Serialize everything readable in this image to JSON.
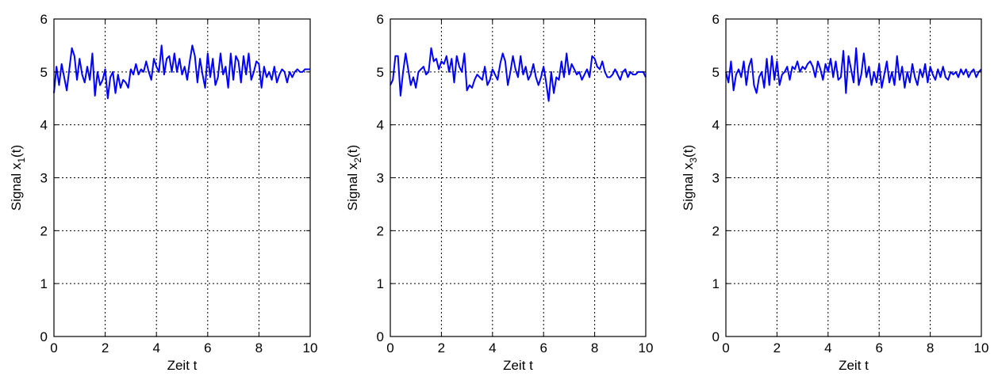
{
  "chart_data": [
    {
      "type": "line",
      "xlabel": "Zeit t",
      "ylabel": {
        "prefix": "Signal x",
        "sub": "1",
        "suffix": "(t)"
      },
      "xlim": [
        0,
        10
      ],
      "ylim": [
        0,
        6
      ],
      "xticks": [
        "0",
        "2",
        "4",
        "6",
        "8",
        "10"
      ],
      "yticks": [
        "0",
        "1",
        "2",
        "3",
        "4",
        "5",
        "6"
      ],
      "grid": true,
      "color": "#0000ff",
      "x": [
        0,
        0.1,
        0.2,
        0.3,
        0.4,
        0.5,
        0.6,
        0.7,
        0.8,
        0.9,
        1.0,
        1.1,
        1.2,
        1.3,
        1.4,
        1.5,
        1.6,
        1.7,
        1.8,
        1.9,
        2.0,
        2.1,
        2.2,
        2.3,
        2.4,
        2.5,
        2.6,
        2.7,
        2.8,
        2.9,
        3.0,
        3.1,
        3.2,
        3.3,
        3.4,
        3.5,
        3.6,
        3.7,
        3.8,
        3.9,
        4.0,
        4.1,
        4.2,
        4.3,
        4.4,
        4.5,
        4.6,
        4.7,
        4.8,
        4.9,
        5.0,
        5.1,
        5.2,
        5.3,
        5.4,
        5.5,
        5.6,
        5.7,
        5.8,
        5.9,
        6.0,
        6.1,
        6.2,
        6.3,
        6.4,
        6.5,
        6.6,
        6.7,
        6.8,
        6.9,
        7.0,
        7.1,
        7.2,
        7.3,
        7.4,
        7.5,
        7.6,
        7.7,
        7.8,
        7.9,
        8.0,
        8.1,
        8.2,
        8.3,
        8.4,
        8.5,
        8.6,
        8.7,
        8.8,
        8.9,
        9.0,
        9.1,
        9.2,
        9.3,
        9.4,
        9.5,
        9.6,
        9.7,
        9.8,
        9.9,
        10.0
      ],
      "values": [
        4.6,
        5.1,
        4.75,
        5.15,
        4.9,
        4.65,
        5.05,
        5.45,
        5.3,
        4.85,
        5.25,
        4.95,
        4.8,
        5.1,
        4.85,
        5.35,
        4.55,
        5.0,
        4.75,
        4.85,
        5.05,
        4.5,
        4.9,
        5.0,
        4.6,
        4.95,
        4.7,
        4.85,
        4.8,
        4.7,
        5.05,
        4.95,
        5.15,
        4.95,
        5.05,
        5.0,
        5.2,
        5.0,
        4.85,
        5.25,
        5.1,
        5.0,
        5.5,
        4.95,
        5.25,
        5.3,
        5.0,
        5.35,
        5.0,
        5.25,
        4.95,
        5.1,
        4.85,
        5.2,
        5.5,
        5.3,
        4.8,
        5.25,
        4.95,
        4.7,
        5.35,
        4.9,
        5.25,
        4.75,
        4.9,
        5.35,
        4.95,
        5.1,
        4.7,
        5.35,
        4.85,
        5.3,
        5.2,
        4.8,
        5.3,
        4.95,
        5.35,
        4.85,
        5.0,
        5.2,
        5.15,
        4.7,
        5.1,
        4.9,
        5.0,
        4.85,
        5.1,
        4.8,
        4.95,
        5.05,
        5.0,
        4.8,
        5.0,
        4.9,
        5.0,
        5.05,
        5.0,
        5.0,
        5.05,
        5.05,
        5.05
      ]
    },
    {
      "type": "line",
      "xlabel": "Zeit t",
      "ylabel": {
        "prefix": "Signal x",
        "sub": "2",
        "suffix": "(t)"
      },
      "xlim": [
        0,
        10
      ],
      "ylim": [
        0,
        6
      ],
      "xticks": [
        "0",
        "2",
        "4",
        "6",
        "8",
        "10"
      ],
      "yticks": [
        "0",
        "1",
        "2",
        "3",
        "4",
        "5",
        "6"
      ],
      "grid": true,
      "color": "#0000ff",
      "x": [
        0,
        0.1,
        0.2,
        0.3,
        0.4,
        0.5,
        0.6,
        0.7,
        0.8,
        0.9,
        1.0,
        1.1,
        1.2,
        1.3,
        1.4,
        1.5,
        1.6,
        1.7,
        1.8,
        1.9,
        2.0,
        2.1,
        2.2,
        2.3,
        2.4,
        2.5,
        2.6,
        2.7,
        2.8,
        2.9,
        3.0,
        3.1,
        3.2,
        3.3,
        3.4,
        3.5,
        3.6,
        3.7,
        3.8,
        3.9,
        4.0,
        4.1,
        4.2,
        4.3,
        4.4,
        4.5,
        4.6,
        4.7,
        4.8,
        4.9,
        5.0,
        5.1,
        5.2,
        5.3,
        5.4,
        5.5,
        5.6,
        5.7,
        5.8,
        5.9,
        6.0,
        6.1,
        6.2,
        6.3,
        6.4,
        6.5,
        6.6,
        6.7,
        6.8,
        6.9,
        7.0,
        7.1,
        7.2,
        7.3,
        7.4,
        7.5,
        7.6,
        7.7,
        7.8,
        7.9,
        8.0,
        8.1,
        8.2,
        8.3,
        8.4,
        8.5,
        8.6,
        8.7,
        8.8,
        8.9,
        9.0,
        9.1,
        9.2,
        9.3,
        9.4,
        9.5,
        9.6,
        9.7,
        9.8,
        9.9,
        10.0
      ],
      "values": [
        4.75,
        4.85,
        5.3,
        5.3,
        4.55,
        5.0,
        5.35,
        5.05,
        4.75,
        4.9,
        4.7,
        5.0,
        5.05,
        5.1,
        4.95,
        5.0,
        5.45,
        5.2,
        5.25,
        5.05,
        5.2,
        5.15,
        5.3,
        5.0,
        5.25,
        4.8,
        5.3,
        5.1,
        5.0,
        5.35,
        4.65,
        4.75,
        4.7,
        4.85,
        4.95,
        4.9,
        4.85,
        5.1,
        4.75,
        4.85,
        5.05,
        4.95,
        4.85,
        5.15,
        5.35,
        5.2,
        4.75,
        5.0,
        5.3,
        5.05,
        4.9,
        5.3,
        4.95,
        5.1,
        4.85,
        4.95,
        5.15,
        4.9,
        4.75,
        4.9,
        5.1,
        4.8,
        4.45,
        5.0,
        4.6,
        4.9,
        4.85,
        5.2,
        4.9,
        5.35,
        4.95,
        5.15,
        5.05,
        4.95,
        5.0,
        4.85,
        4.95,
        5.05,
        4.9,
        5.3,
        5.25,
        5.1,
        5.05,
        5.2,
        5.0,
        4.9,
        4.9,
        4.95,
        5.05,
        4.95,
        4.85,
        5.0,
        5.05,
        4.9,
        5.0,
        4.95,
        4.95,
        5.0,
        5.0,
        5.0,
        4.9
      ]
    },
    {
      "type": "line",
      "xlabel": "Zeit t",
      "ylabel": {
        "prefix": "Signal x",
        "sub": "3",
        "suffix": "(t)"
      },
      "xlim": [
        0,
        10
      ],
      "ylim": [
        0,
        6
      ],
      "xticks": [
        "0",
        "2",
        "4",
        "6",
        "8",
        "10"
      ],
      "yticks": [
        "0",
        "1",
        "2",
        "3",
        "4",
        "5",
        "6"
      ],
      "grid": true,
      "color": "#0000ff",
      "x": [
        0,
        0.1,
        0.2,
        0.3,
        0.4,
        0.5,
        0.6,
        0.7,
        0.8,
        0.9,
        1.0,
        1.1,
        1.2,
        1.3,
        1.4,
        1.5,
        1.6,
        1.7,
        1.8,
        1.9,
        2.0,
        2.1,
        2.2,
        2.3,
        2.4,
        2.5,
        2.6,
        2.7,
        2.8,
        2.9,
        3.0,
        3.1,
        3.2,
        3.3,
        3.4,
        3.5,
        3.6,
        3.7,
        3.8,
        3.9,
        4.0,
        4.1,
        4.2,
        4.3,
        4.4,
        4.5,
        4.6,
        4.7,
        4.8,
        4.9,
        5.0,
        5.1,
        5.2,
        5.3,
        5.4,
        5.5,
        5.6,
        5.7,
        5.8,
        5.9,
        6.0,
        6.1,
        6.2,
        6.3,
        6.4,
        6.5,
        6.6,
        6.7,
        6.8,
        6.9,
        7.0,
        7.1,
        7.2,
        7.3,
        7.4,
        7.5,
        7.6,
        7.7,
        7.8,
        7.9,
        8.0,
        8.1,
        8.2,
        8.3,
        8.4,
        8.5,
        8.6,
        8.7,
        8.8,
        8.9,
        9.0,
        9.1,
        9.2,
        9.3,
        9.4,
        9.5,
        9.6,
        9.7,
        9.8,
        9.9,
        10.0
      ],
      "values": [
        5.0,
        4.8,
        5.2,
        4.65,
        4.95,
        5.05,
        4.9,
        5.2,
        4.75,
        5.1,
        5.25,
        4.75,
        4.6,
        4.9,
        5.0,
        4.7,
        5.25,
        4.75,
        5.3,
        4.85,
        5.2,
        4.75,
        4.95,
        5.0,
        5.1,
        4.85,
        5.1,
        5.05,
        5.2,
        5.0,
        5.1,
        5.05,
        5.15,
        5.2,
        5.1,
        4.9,
        5.2,
        5.05,
        4.85,
        5.15,
        5.0,
        5.25,
        4.9,
        5.2,
        4.85,
        4.9,
        5.4,
        4.6,
        5.3,
        5.05,
        4.8,
        5.45,
        4.75,
        4.95,
        5.35,
        4.9,
        5.1,
        4.75,
        5.0,
        4.8,
        5.15,
        4.7,
        4.95,
        5.2,
        4.8,
        5.0,
        4.75,
        5.3,
        4.85,
        5.1,
        4.7,
        5.0,
        4.8,
        5.15,
        4.9,
        4.75,
        5.05,
        4.9,
        5.15,
        4.8,
        5.1,
        4.95,
        4.85,
        5.05,
        4.9,
        5.1,
        4.9,
        4.85,
        5.0,
        4.95,
        5.0,
        4.9,
        5.05,
        4.95,
        5.05,
        4.9,
        5.0,
        5.05,
        4.9,
        5.0,
        5.05
      ]
    }
  ]
}
